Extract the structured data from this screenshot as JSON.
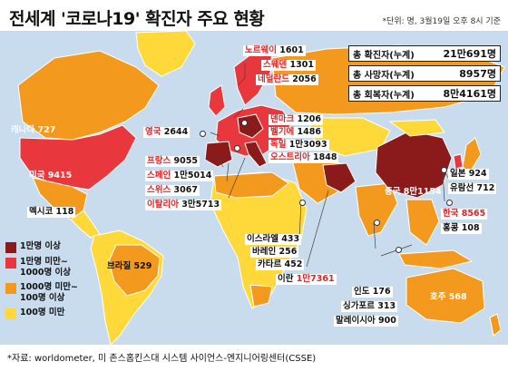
{
  "title": "전세계 '코로나19' 확진자 주요 현황",
  "unit_note": "*단위: 명, 3월19일 오후 8시 기준",
  "totals": [
    {
      "label": "총 확진자(누계)",
      "value": "21만691명"
    },
    {
      "label": "총 사망자(누계)",
      "value": "8957명"
    },
    {
      "label": "총 회복자(누계)",
      "value": "8만4161명"
    }
  ],
  "legend": [
    {
      "label": "1만명 이상",
      "color": "#8b1a1a"
    },
    {
      "label": "1만명 미만~ 1000명 이상",
      "color": "#e8383d"
    },
    {
      "label": "1000명 미만~ 100명 이상",
      "color": "#f39a1e"
    },
    {
      "label": "100명 미만",
      "color": "#ffd83a"
    }
  ],
  "countries": [
    {
      "name": "노르웨이",
      "value": "1601"
    },
    {
      "name": "스웨덴",
      "value": "1301"
    },
    {
      "name": "네덜란드",
      "value": "2056"
    },
    {
      "name": "영국",
      "value": "2644"
    },
    {
      "name": "덴마크",
      "value": "1206"
    },
    {
      "name": "벨기에",
      "value": "1486"
    },
    {
      "name": "독일",
      "value": "1만3093"
    },
    {
      "name": "오스트리아",
      "value": "1848"
    },
    {
      "name": "프랑스",
      "value": "9055"
    },
    {
      "name": "스페인",
      "value": "1만5014"
    },
    {
      "name": "스위스",
      "value": "3067"
    },
    {
      "name": "이탈리아",
      "value": "3만5713"
    },
    {
      "name": "캐나다",
      "value": "727"
    },
    {
      "name": "미국",
      "value": "9415"
    },
    {
      "name": "멕시코",
      "value": "118"
    },
    {
      "name": "브라질",
      "value": "529"
    },
    {
      "name": "이스라엘",
      "value": "433"
    },
    {
      "name": "바레인",
      "value": "256"
    },
    {
      "name": "카타르",
      "value": "452"
    },
    {
      "name": "이란",
      "value": "1만7361"
    },
    {
      "name": "인도",
      "value": "176"
    },
    {
      "name": "싱가포르",
      "value": "313"
    },
    {
      "name": "말레이시아",
      "value": "900"
    },
    {
      "name": "중국",
      "value": "8만1154"
    },
    {
      "name": "일본",
      "value": "924"
    },
    {
      "name": "유람선",
      "value": "712"
    },
    {
      "name": "한국",
      "value": "8565"
    },
    {
      "name": "홍콩",
      "value": "108"
    },
    {
      "name": "호주",
      "value": "568"
    }
  ],
  "source": "*자료: worldometer, 미 존스홉킨스대 시스템 사이언스-엔지니어링센터(CSSE)",
  "colors": {
    "ocean": "#c8dcee",
    "land": "#fff3c4",
    "level1": "#8b1a1a",
    "level2": "#e8383d",
    "level3": "#f39a1e",
    "level4": "#ffd83a"
  }
}
